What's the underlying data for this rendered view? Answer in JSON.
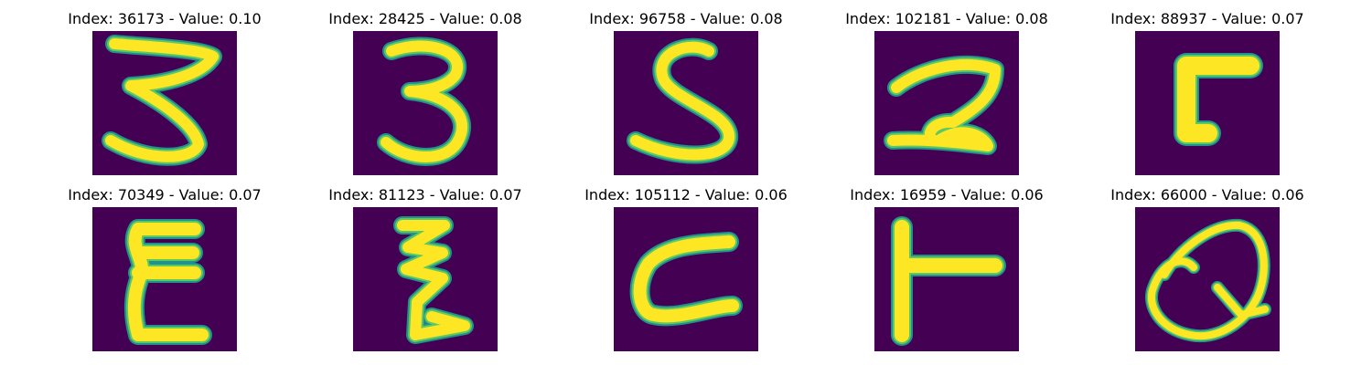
{
  "figure": {
    "panels": [
      {
        "title": "Index: 36173 - Value: 0.10",
        "glyph": "3-like handwritten character",
        "icon": "handwritten-glyph-icon"
      },
      {
        "title": "Index: 28425 - Value: 0.08",
        "glyph": "3",
        "icon": "handwritten-glyph-icon"
      },
      {
        "title": "Index: 96758 - Value: 0.08",
        "glyph": "S",
        "icon": "handwritten-glyph-icon"
      },
      {
        "title": "Index: 102181 - Value: 0.08",
        "glyph": "2-like handwritten character",
        "icon": "handwritten-glyph-icon"
      },
      {
        "title": "Index: 88937 - Value: 0.07",
        "glyph": "reversed 5-like handwritten character",
        "icon": "handwritten-glyph-icon"
      },
      {
        "title": "Index: 70349 - Value: 0.07",
        "glyph": "E-like handwritten character",
        "icon": "handwritten-glyph-icon"
      },
      {
        "title": "Index: 81123 - Value: 0.07",
        "glyph": "zig-zag handwritten character",
        "icon": "handwritten-glyph-icon"
      },
      {
        "title": "Index: 105112 - Value: 0.06",
        "glyph": "C-like handwritten character",
        "icon": "handwritten-glyph-icon"
      },
      {
        "title": "Index: 16959 - Value: 0.06",
        "glyph": "T-like handwritten character",
        "icon": "handwritten-glyph-icon"
      },
      {
        "title": "Index: 66000 - Value: 0.06",
        "glyph": "Q",
        "icon": "handwritten-glyph-icon"
      }
    ]
  },
  "colors": {
    "image_background": "#440154",
    "stroke_core": "#fde725",
    "stroke_mid": "#5ec962",
    "stroke_edge": "#21918c",
    "title_text": "#000000",
    "figure_background": "#ffffff"
  }
}
